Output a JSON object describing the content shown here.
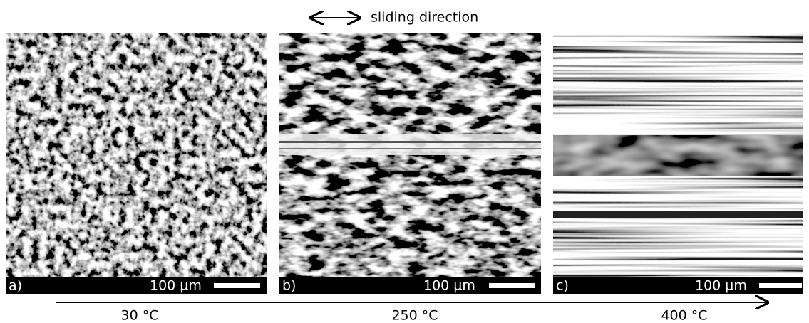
{
  "direction_label": "sliding direction",
  "panels": [
    {
      "label": "a)",
      "scale": "100 µm",
      "temperature": "30 °C"
    },
    {
      "label": "b)",
      "scale": "100 µm",
      "temperature": "250 °C"
    },
    {
      "label": "c)",
      "scale": "100 µm",
      "temperature": "400 °C"
    }
  ]
}
